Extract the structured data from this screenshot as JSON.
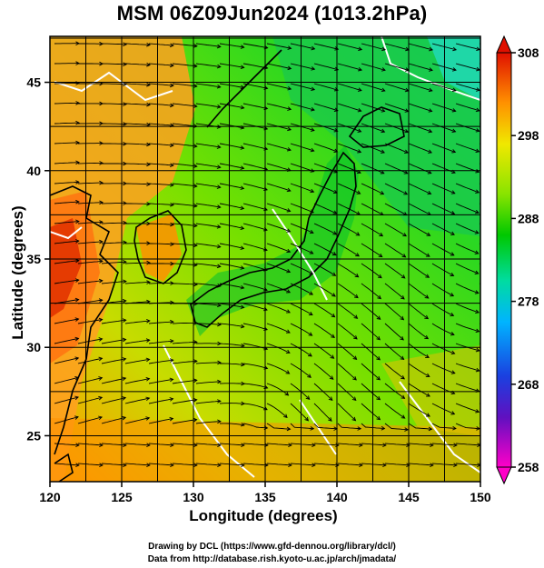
{
  "title": "MSM 06Z09Jun2024 (1013.2hPa)",
  "axes": {
    "xlabel": "Longitude (degrees)",
    "ylabel": "Latitude  (degrees)",
    "x_ticks": [
      "120",
      "125",
      "130",
      "135",
      "140",
      "145",
      "150"
    ],
    "y_ticks": [
      "25",
      "30",
      "35",
      "40",
      "45"
    ],
    "x_range": [
      120,
      150
    ],
    "y_range": [
      22.4,
      47.6
    ]
  },
  "colorbar": {
    "labels": [
      "308",
      "298",
      "288",
      "278",
      "268",
      "258"
    ],
    "range": [
      258,
      308
    ],
    "colors": [
      "#ff00c8",
      "#2020c0",
      "#00b4ff",
      "#00d890",
      "#00c800",
      "#9ae600",
      "#e6e600",
      "#ffa800",
      "#ff5000",
      "#d01000"
    ]
  },
  "credits": {
    "line1": "Drawing by DCL (https://www.gfd-dennou.org/library/dcl/)",
    "line2": "Data from http://database.rish.kyoto-u.ac.jp/arch/jmadata/"
  }
}
